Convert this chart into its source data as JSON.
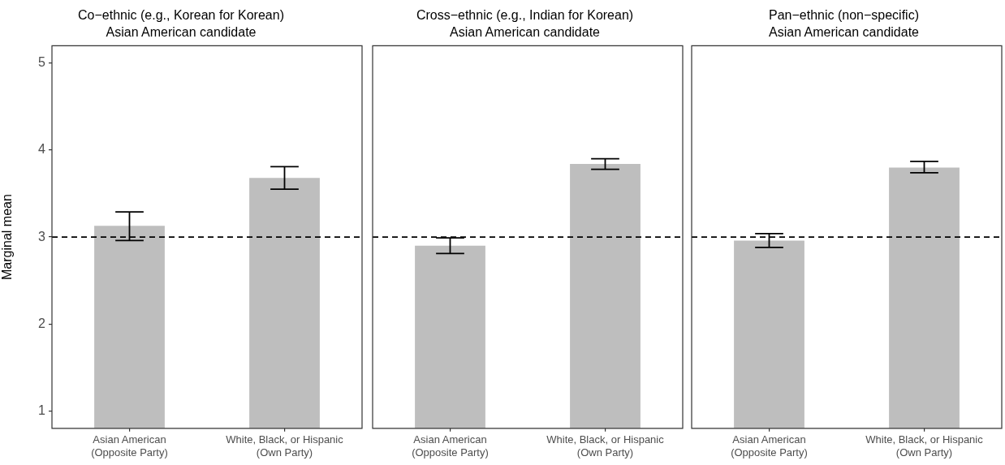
{
  "chart_data": [
    {
      "type": "bar",
      "title": "Co−ethnic (e.g., Korean for Korean)",
      "subtitle": "Asian American candidate",
      "ylabel": "Marginal mean",
      "categories": [
        "Asian American\n(Opposite Party)",
        "White, Black, or Hispanic\n(Own Party)"
      ],
      "values": [
        3.13,
        3.68
      ],
      "color": "#bebebe",
      "errors": [
        [
          2.96,
          3.29
        ],
        [
          3.55,
          3.81
        ]
      ],
      "ylim": [
        0.8,
        5.2
      ],
      "yticks": [
        1,
        2,
        3,
        4,
        5
      ],
      "ref_lines": [
        {
          "axis": "y",
          "value": 3,
          "color": "#000000",
          "line_style": "dashed"
        }
      ]
    },
    {
      "type": "bar",
      "title": "Cross−ethnic (e.g., Indian for Korean)",
      "subtitle": "Asian American candidate",
      "categories": [
        "Asian American\n(Opposite Party)",
        "White, Black, or Hispanic\n(Own Party)"
      ],
      "values": [
        2.9,
        3.84
      ],
      "color": "#bebebe",
      "errors": [
        [
          2.81,
          2.99
        ],
        [
          3.78,
          3.9
        ]
      ],
      "ylim": [
        0.8,
        5.2
      ],
      "tick_labels": "x",
      "ref_lines": [
        {
          "axis": "y",
          "value": 3,
          "color": "#000000",
          "line_style": "dashed"
        }
      ]
    },
    {
      "type": "bar",
      "title": "Pan−ethnic (non−specific)",
      "subtitle": "Asian American candidate",
      "categories": [
        "Asian American\n(Opposite Party)",
        "White, Black, or Hispanic\n(Own Party)"
      ],
      "values": [
        2.96,
        3.8
      ],
      "color": "#bebebe",
      "errors": [
        [
          2.88,
          3.04
        ],
        [
          3.74,
          3.87
        ]
      ],
      "ylim": [
        0.8,
        5.2
      ],
      "tick_labels": "x",
      "ref_lines": [
        {
          "axis": "y",
          "value": 3,
          "color": "#000000",
          "line_style": "dashed"
        }
      ]
    }
  ]
}
